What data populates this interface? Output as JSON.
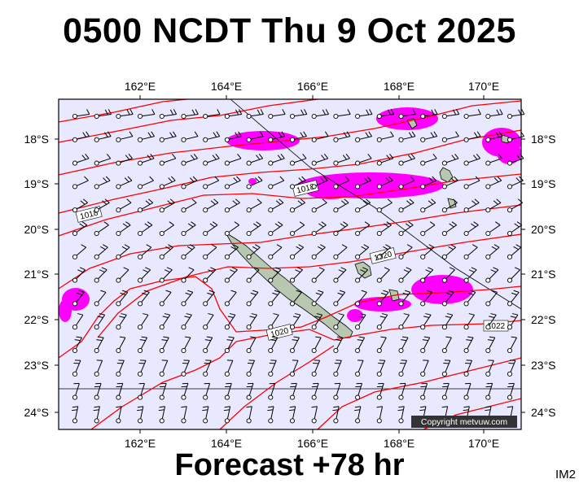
{
  "title": "0500 NCDT Thu 9 Oct 2025",
  "footer": "Forecast +78 hr",
  "code": "IM2",
  "copyright": "Copyright metvuw.com",
  "map": {
    "lon_ticks": [
      "162°E",
      "164°E",
      "166°E",
      "168°E",
      "170°E"
    ],
    "lat_ticks": [
      "18°S",
      "19°S",
      "20°S",
      "21°S",
      "22°S",
      "23°S",
      "24°S"
    ],
    "isobar_labels": [
      "1018",
      "1018",
      "1020",
      "1020",
      "1022"
    ],
    "colors": {
      "ocean": "#e8e8ff",
      "isobar": "#ff0000",
      "rain": "#ff00ff",
      "land": "#b8c8b0"
    }
  }
}
